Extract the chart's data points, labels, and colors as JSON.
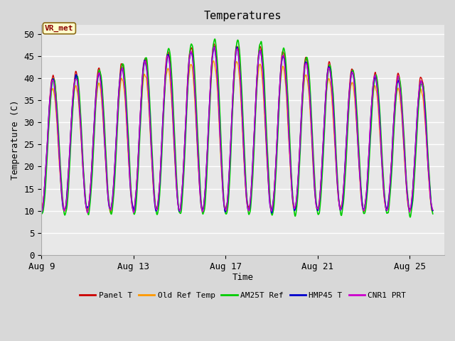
{
  "title": "Temperatures",
  "xlabel": "Time",
  "ylabel": "Temperature (C)",
  "ylim": [
    0,
    52
  ],
  "yticks": [
    0,
    5,
    10,
    15,
    20,
    25,
    30,
    35,
    40,
    45,
    50
  ],
  "x_start_day": 9,
  "xtick_days": [
    9,
    13,
    17,
    21,
    25
  ],
  "xtick_labels": [
    "Aug 9",
    "Aug 13",
    "Aug 17",
    "Aug 21",
    "Aug 25"
  ],
  "outer_bg_color": "#d8d8d8",
  "plot_bg_color": "#e8e8e8",
  "grid_color": "#ffffff",
  "series": {
    "Panel T": {
      "color": "#cc0000",
      "lw": 1.0
    },
    "Old Ref Temp": {
      "color": "#ff9900",
      "lw": 1.0
    },
    "AM25T Ref": {
      "color": "#00cc00",
      "lw": 1.2
    },
    "HMP45 T": {
      "color": "#0000cc",
      "lw": 1.2
    },
    "CNR1 PRT": {
      "color": "#cc00cc",
      "lw": 1.0
    }
  },
  "annotation_text": "VR_met",
  "n_days": 17,
  "points_per_day": 144
}
